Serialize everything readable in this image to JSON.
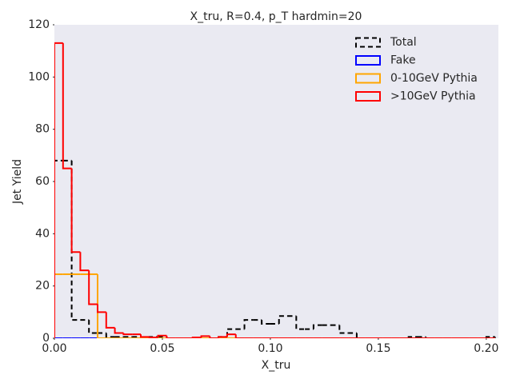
{
  "chart_data": {
    "type": "histogram",
    "title": "X_tru, R=0.4, p_T hardmin=20",
    "xlabel": "X_tru",
    "ylabel": "Jet Yield",
    "bins": [
      0,
      0.004,
      0.008,
      0.012,
      0.016,
      0.02,
      0.024,
      0.028,
      0.032,
      0.036,
      0.04,
      0.044,
      0.048,
      0.052,
      0.056,
      0.06,
      0.064,
      0.068,
      0.072,
      0.076,
      0.08,
      0.084,
      0.088,
      0.092,
      0.096,
      0.1,
      0.104,
      0.108,
      0.112,
      0.116,
      0.12,
      0.124,
      0.128,
      0.132,
      0.136,
      0.14,
      0.144,
      0.148,
      0.152,
      0.156,
      0.16,
      0.164,
      0.168,
      0.172,
      0.176,
      0.18,
      0.184,
      0.188,
      0.192,
      0.196,
      0.2,
      0.204
    ],
    "series": [
      {
        "name": "Total",
        "color": "#000000",
        "linestyle": "dashed",
        "values": [
          68,
          68,
          7,
          7,
          2,
          2,
          0.5,
          0.5,
          0.5,
          0.5,
          0,
          0.5,
          0.5,
          0,
          0,
          0,
          0,
          0,
          0,
          0.5,
          3.5,
          3.5,
          7,
          7,
          5.5,
          5.5,
          8.5,
          8.5,
          3.5,
          3.5,
          5,
          5,
          5,
          2,
          2,
          0,
          0,
          0,
          0,
          0,
          0,
          0.5,
          0.5,
          0,
          0,
          0,
          0,
          0,
          0,
          0,
          0.5
        ]
      },
      {
        "name": "Fake",
        "color": "#0000ff",
        "linestyle": "solid",
        "values": [
          0,
          0,
          0,
          0,
          0,
          0,
          0,
          0,
          0,
          0,
          0,
          0,
          0,
          0,
          0,
          0,
          0,
          0,
          0,
          0,
          0,
          0,
          0,
          0,
          0,
          0,
          0,
          0,
          0,
          0,
          0,
          0,
          0,
          0,
          0,
          0,
          0,
          0,
          0,
          0,
          0,
          0,
          0,
          0,
          0,
          0,
          0,
          0,
          0,
          0,
          0
        ]
      },
      {
        "name": "0-10GeV Pythia",
        "color": "#ffa500",
        "linestyle": "solid",
        "values": [
          24.5,
          24.5,
          24.5,
          24.5,
          24.5,
          0,
          0,
          0,
          0,
          0,
          0,
          0,
          0,
          0,
          0,
          0,
          0,
          0,
          0,
          0,
          0,
          0,
          0,
          0,
          0,
          0,
          0,
          0,
          0,
          0,
          0,
          0,
          0,
          0,
          0,
          0,
          0,
          0,
          0,
          0,
          0,
          0,
          0,
          0,
          0,
          0,
          0,
          0,
          0,
          0,
          0
        ]
      },
      {
        "name": ">10GeV Pythia",
        "color": "#ff0000",
        "linestyle": "solid",
        "values": [
          113,
          65,
          33,
          26,
          13,
          10,
          4,
          2,
          1.5,
          1.5,
          0.5,
          0.3,
          1,
          0,
          0,
          0,
          0.3,
          0.8,
          0,
          0.5,
          1.5,
          0,
          0,
          0,
          0,
          0,
          0,
          0,
          0,
          0,
          0,
          0,
          0,
          0,
          0,
          0,
          0,
          0,
          0,
          0,
          0,
          0,
          0,
          0,
          0,
          0,
          0,
          0,
          0,
          0,
          0
        ]
      }
    ],
    "xlim": [
      0,
      0.2056
    ],
    "ylim": [
      0,
      120
    ],
    "xticks": [
      {
        "value": 0,
        "label": "0.00"
      },
      {
        "value": 0.05,
        "label": "0.05"
      },
      {
        "value": 0.1,
        "label": "0.10"
      },
      {
        "value": 0.15,
        "label": "0.15"
      },
      {
        "value": 0.2,
        "label": "0.20"
      }
    ],
    "yticks": [
      0,
      20,
      40,
      60,
      80,
      100,
      120
    ],
    "legend": "upper right",
    "grid": false
  }
}
